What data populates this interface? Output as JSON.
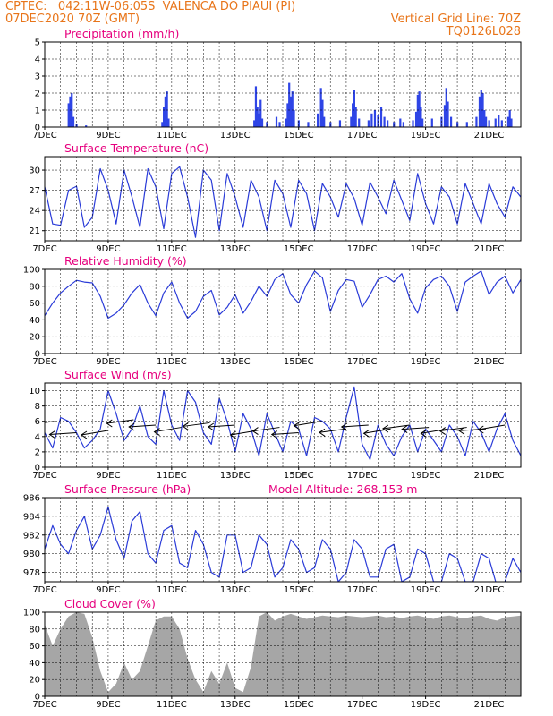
{
  "header": {
    "line1_left": "CPTEC:   042:11W-06:05S  VALENCA DO PIAUI (PI)",
    "line2_left": "07DEC2020 70Z (GMT)",
    "line2_right": "Vertical Grid Line: 70Z",
    "line3_right": "TQ0126L028",
    "model_altitude": "Model Altitude: 268.153 m"
  },
  "colors": {
    "header": "#e8751a",
    "title": "#e6007e",
    "series": "#2a3bd8",
    "precip": "#2f45e6",
    "cloud": "#a6a6a6"
  },
  "chart_data": [
    {
      "type": "bar",
      "title": "Precipitation (mm/h)",
      "ylim": [
        0,
        5
      ],
      "yticks": [
        0,
        1,
        2,
        3,
        4,
        5
      ],
      "x_start_day": 7,
      "x_end_day": 22,
      "xticks": [
        "7DEC",
        "9DEC",
        "11DEC",
        "13DEC",
        "15DEC",
        "17DEC",
        "19DEC",
        "21DEC"
      ],
      "values": [
        [
          7.75,
          1.4
        ],
        [
          7.8,
          1.8
        ],
        [
          7.85,
          2.0
        ],
        [
          7.9,
          0.6
        ],
        [
          8.0,
          0.2
        ],
        [
          8.3,
          0.1
        ],
        [
          10.7,
          0.3
        ],
        [
          10.75,
          1.2
        ],
        [
          10.8,
          1.8
        ],
        [
          10.85,
          2.1
        ],
        [
          10.9,
          0.5
        ],
        [
          13.6,
          0.4
        ],
        [
          13.65,
          2.4
        ],
        [
          13.7,
          1.2
        ],
        [
          13.75,
          0.8
        ],
        [
          13.8,
          1.6
        ],
        [
          13.85,
          0.5
        ],
        [
          14.0,
          0.3
        ],
        [
          14.3,
          0.6
        ],
        [
          14.4,
          0.3
        ],
        [
          14.6,
          0.5
        ],
        [
          14.65,
          1.4
        ],
        [
          14.7,
          2.6
        ],
        [
          14.75,
          1.8
        ],
        [
          14.8,
          2.1
        ],
        [
          14.85,
          1.0
        ],
        [
          15.0,
          0.4
        ],
        [
          15.3,
          0.3
        ],
        [
          15.6,
          0.8
        ],
        [
          15.7,
          2.3
        ],
        [
          15.75,
          1.6
        ],
        [
          15.8,
          0.6
        ],
        [
          16.0,
          0.3
        ],
        [
          16.3,
          0.4
        ],
        [
          16.65,
          0.6
        ],
        [
          16.7,
          1.4
        ],
        [
          16.75,
          2.2
        ],
        [
          16.8,
          1.2
        ],
        [
          16.9,
          0.5
        ],
        [
          17.2,
          0.4
        ],
        [
          17.3,
          0.8
        ],
        [
          17.4,
          1.0
        ],
        [
          17.5,
          0.7
        ],
        [
          17.6,
          1.2
        ],
        [
          17.7,
          0.6
        ],
        [
          17.8,
          0.4
        ],
        [
          18.0,
          0.3
        ],
        [
          18.2,
          0.5
        ],
        [
          18.3,
          0.3
        ],
        [
          18.6,
          0.4
        ],
        [
          18.7,
          0.9
        ],
        [
          18.75,
          1.9
        ],
        [
          18.8,
          2.1
        ],
        [
          18.85,
          1.2
        ],
        [
          18.9,
          0.5
        ],
        [
          19.2,
          0.5
        ],
        [
          19.5,
          0.6
        ],
        [
          19.6,
          1.3
        ],
        [
          19.65,
          2.3
        ],
        [
          19.7,
          1.5
        ],
        [
          19.8,
          0.6
        ],
        [
          20.0,
          0.3
        ],
        [
          20.3,
          0.3
        ],
        [
          20.6,
          0.6
        ],
        [
          20.7,
          1.8
        ],
        [
          20.75,
          2.2
        ],
        [
          20.8,
          2.0
        ],
        [
          20.85,
          1.0
        ],
        [
          20.9,
          0.6
        ],
        [
          21.0,
          0.4
        ],
        [
          21.2,
          0.5
        ],
        [
          21.3,
          0.7
        ],
        [
          21.4,
          0.4
        ],
        [
          21.6,
          0.6
        ],
        [
          21.65,
          1.0
        ],
        [
          21.7,
          0.5
        ]
      ]
    },
    {
      "type": "line",
      "title": "Surface Temperature (nC)",
      "ylim": [
        19.5,
        32
      ],
      "yticks": [
        21,
        24,
        27,
        30
      ],
      "x_start_day": 7,
      "x_end_day": 22,
      "xticks": [
        "7DEC",
        "9DEC",
        "11DEC",
        "13DEC",
        "15DEC",
        "17DEC",
        "19DEC",
        "21DEC"
      ],
      "x": [
        7.0,
        7.25,
        7.5,
        7.75,
        8.0,
        8.25,
        8.5,
        8.75,
        9.0,
        9.25,
        9.5,
        9.75,
        10.0,
        10.25,
        10.5,
        10.75,
        11.0,
        11.25,
        11.5,
        11.75,
        12.0,
        12.25,
        12.5,
        12.75,
        13.0,
        13.25,
        13.5,
        13.75,
        14.0,
        14.25,
        14.5,
        14.75,
        15.0,
        15.25,
        15.5,
        15.75,
        16.0,
        16.25,
        16.5,
        16.75,
        17.0,
        17.25,
        17.5,
        17.75,
        18.0,
        18.25,
        18.5,
        18.75,
        19.0,
        19.25,
        19.5,
        19.75,
        20.0,
        20.25,
        20.5,
        20.75,
        21.0,
        21.25,
        21.5,
        21.75,
        22.0
      ],
      "y": [
        27.5,
        22.0,
        21.8,
        27.0,
        27.6,
        21.5,
        23.0,
        30.2,
        27.0,
        22.0,
        30.0,
        26.0,
        21.5,
        30.2,
        27.5,
        21.3,
        29.5,
        30.5,
        26.0,
        20.0,
        30.0,
        28.5,
        21.0,
        29.5,
        26.0,
        21.5,
        28.5,
        26.0,
        21.0,
        28.5,
        26.5,
        21.5,
        28.5,
        26.5,
        21.0,
        28.0,
        26.0,
        23.0,
        28.0,
        25.8,
        21.8,
        28.2,
        26.0,
        23.5,
        28.5,
        25.5,
        22.5,
        29.5,
        25.0,
        22.0,
        27.5,
        26.0,
        22.0,
        28.0,
        25.0,
        22.0,
        28.0,
        25.0,
        23.0,
        27.5,
        26.0
      ]
    },
    {
      "type": "line",
      "title": "Relative Humidity (%)",
      "ylim": [
        0,
        100
      ],
      "yticks": [
        0,
        20,
        40,
        60,
        80,
        100
      ],
      "x_start_day": 7,
      "x_end_day": 22,
      "xticks": [
        "7DEC",
        "9DEC",
        "11DEC",
        "13DEC",
        "15DEC",
        "17DEC",
        "19DEC",
        "21DEC"
      ],
      "x": [
        7.0,
        7.25,
        7.5,
        7.75,
        8.0,
        8.25,
        8.5,
        8.75,
        9.0,
        9.25,
        9.5,
        9.75,
        10.0,
        10.25,
        10.5,
        10.75,
        11.0,
        11.25,
        11.5,
        11.75,
        12.0,
        12.25,
        12.5,
        12.75,
        13.0,
        13.25,
        13.5,
        13.75,
        14.0,
        14.25,
        14.5,
        14.75,
        15.0,
        15.25,
        15.5,
        15.75,
        16.0,
        16.25,
        16.5,
        16.75,
        17.0,
        17.25,
        17.5,
        17.75,
        18.0,
        18.25,
        18.5,
        18.75,
        19.0,
        19.25,
        19.5,
        19.75,
        20.0,
        20.25,
        20.5,
        20.75,
        21.0,
        21.25,
        21.5,
        21.75,
        22.0
      ],
      "y": [
        45,
        60,
        72,
        80,
        87,
        85,
        84,
        68,
        42,
        48,
        58,
        72,
        82,
        60,
        45,
        72,
        85,
        60,
        42,
        50,
        68,
        75,
        46,
        55,
        70,
        48,
        62,
        80,
        68,
        88,
        95,
        70,
        60,
        82,
        98,
        90,
        50,
        75,
        88,
        86,
        55,
        70,
        88,
        92,
        85,
        95,
        65,
        48,
        78,
        88,
        92,
        80,
        50,
        85,
        92,
        98,
        70,
        85,
        92,
        72,
        88
      ]
    },
    {
      "type": "line",
      "title": "Surface Wind (m/s)",
      "ylim": [
        0,
        11
      ],
      "yticks": [
        0,
        2,
        4,
        6,
        8,
        10
      ],
      "x_start_day": 7,
      "x_end_day": 22,
      "xticks": [
        "7DEC",
        "9DEC",
        "11DEC",
        "13DEC",
        "15DEC",
        "17DEC",
        "19DEC",
        "21DEC"
      ],
      "x": [
        7.0,
        7.25,
        7.5,
        7.75,
        8.0,
        8.25,
        8.5,
        8.75,
        9.0,
        9.25,
        9.5,
        9.75,
        10.0,
        10.25,
        10.5,
        10.75,
        11.0,
        11.25,
        11.5,
        11.75,
        12.0,
        12.25,
        12.5,
        12.75,
        13.0,
        13.25,
        13.5,
        13.75,
        14.0,
        14.25,
        14.5,
        14.75,
        15.0,
        15.25,
        15.5,
        15.75,
        16.0,
        16.25,
        16.5,
        16.75,
        17.0,
        17.25,
        17.5,
        17.75,
        18.0,
        18.25,
        18.5,
        18.75,
        19.0,
        19.25,
        19.5,
        19.75,
        20.0,
        20.25,
        20.5,
        20.75,
        21.0,
        21.25,
        21.5,
        21.75,
        22.0
      ],
      "y": [
        4.5,
        2.5,
        6.5,
        6.0,
        4.5,
        2.5,
        3.5,
        5.0,
        10.0,
        7.0,
        3.5,
        5.0,
        8.0,
        4.0,
        3.0,
        10.0,
        5.5,
        3.5,
        10.0,
        8.5,
        4.5,
        3.0,
        9.0,
        6.0,
        2.0,
        7.0,
        5.0,
        1.5,
        7.0,
        4.5,
        2.0,
        6.0,
        5.0,
        1.5,
        6.5,
        6.0,
        5.0,
        2.0,
        6.5,
        10.5,
        3.0,
        1.0,
        5.5,
        3.0,
        1.5,
        4.0,
        5.5,
        2.0,
        5.0,
        3.5,
        2.0,
        5.5,
        4.0,
        1.5,
        6.0,
        4.5,
        2.0,
        5.0,
        7.0,
        3.5,
        1.5
      ],
      "arrows_x": [
        7.3,
        8.0,
        9.0,
        9.8,
        10.5,
        11.3,
        12.2,
        13.0,
        13.7,
        14.4,
        15.0,
        15.7,
        16.5,
        17.2,
        17.9,
        18.5,
        19.1,
        19.7,
        20.3,
        20.9,
        21.5
      ],
      "arrows_y": [
        6.0,
        4.5,
        4.8,
        6.2,
        5.5,
        5.2,
        5.8,
        5.5,
        4.8,
        5.2,
        4.5,
        6.0,
        5.0,
        5.5,
        5.0,
        5.5,
        5.2,
        5.0,
        5.2,
        5.0,
        5.5
      ]
    },
    {
      "type": "line",
      "title": "Surface Pressure (hPa)",
      "ylim": [
        977,
        986
      ],
      "yticks": [
        978,
        980,
        982,
        984,
        986
      ],
      "x_start_day": 7,
      "x_end_day": 22,
      "xticks": [
        "7DEC",
        "9DEC",
        "11DEC",
        "13DEC",
        "15DEC",
        "17DEC",
        "19DEC",
        "21DEC"
      ],
      "x": [
        7.0,
        7.25,
        7.5,
        7.75,
        8.0,
        8.25,
        8.5,
        8.75,
        9.0,
        9.25,
        9.5,
        9.75,
        10.0,
        10.25,
        10.5,
        10.75,
        11.0,
        11.25,
        11.5,
        11.75,
        12.0,
        12.25,
        12.5,
        12.75,
        13.0,
        13.25,
        13.5,
        13.75,
        14.0,
        14.25,
        14.5,
        14.75,
        15.0,
        15.25,
        15.5,
        15.75,
        16.0,
        16.25,
        16.5,
        16.75,
        17.0,
        17.25,
        17.5,
        17.75,
        18.0,
        18.25,
        18.5,
        18.75,
        19.0,
        19.25,
        19.5,
        19.75,
        20.0,
        20.25,
        20.5,
        20.75,
        21.0,
        21.25,
        21.5,
        21.75,
        22.0
      ],
      "y": [
        980.5,
        983.0,
        981.0,
        980.0,
        982.5,
        984.0,
        980.5,
        982.0,
        985.0,
        981.5,
        979.5,
        983.5,
        984.5,
        980.0,
        979.0,
        982.5,
        983.0,
        979.0,
        978.5,
        982.5,
        981.0,
        978.0,
        977.5,
        982.0,
        982.0,
        978.0,
        978.5,
        982.0,
        981.0,
        977.5,
        978.5,
        981.5,
        980.5,
        978.0,
        978.5,
        981.5,
        980.5,
        977.0,
        978.0,
        981.5,
        980.5,
        977.5,
        977.5,
        980.5,
        981.0,
        977.0,
        977.5,
        980.5,
        980.0,
        977.0,
        977.0,
        980.0,
        979.5,
        977.0,
        977.0,
        980.0,
        979.5,
        976.5,
        977.0,
        979.5,
        978.0
      ]
    },
    {
      "type": "area",
      "title": "Cloud Cover (%)",
      "ylim": [
        0,
        100
      ],
      "yticks": [
        0,
        20,
        40,
        60,
        80,
        100
      ],
      "x_start_day": 7,
      "x_end_day": 22,
      "xticks": [
        "7DEC",
        "9DEC",
        "11DEC",
        "13DEC",
        "15DEC",
        "17DEC",
        "19DEC",
        "21DEC"
      ],
      "x": [
        7.0,
        7.25,
        7.5,
        7.75,
        8.0,
        8.25,
        8.5,
        8.75,
        9.0,
        9.25,
        9.5,
        9.75,
        10.0,
        10.25,
        10.5,
        10.75,
        11.0,
        11.25,
        11.5,
        11.75,
        12.0,
        12.25,
        12.5,
        12.75,
        13.0,
        13.25,
        13.5,
        13.75,
        14.0,
        14.25,
        14.5,
        14.75,
        15.0,
        15.25,
        15.5,
        15.75,
        16.0,
        16.25,
        16.5,
        16.75,
        17.0,
        17.25,
        17.5,
        17.75,
        18.0,
        18.25,
        18.5,
        18.75,
        19.0,
        19.25,
        19.5,
        19.75,
        20.0,
        20.25,
        20.5,
        20.75,
        21.0,
        21.25,
        21.5,
        21.75,
        22.0
      ],
      "y": [
        85,
        60,
        80,
        95,
        100,
        98,
        70,
        30,
        5,
        15,
        40,
        20,
        30,
        60,
        90,
        95,
        95,
        80,
        45,
        20,
        5,
        30,
        15,
        40,
        10,
        5,
        35,
        95,
        100,
        90,
        95,
        98,
        95,
        92,
        94,
        96,
        95,
        94,
        96,
        95,
        94,
        95,
        96,
        94,
        95,
        93,
        95,
        96,
        94,
        92,
        95,
        96,
        94,
        93,
        95,
        96,
        92,
        90,
        94,
        95,
        96
      ]
    }
  ]
}
